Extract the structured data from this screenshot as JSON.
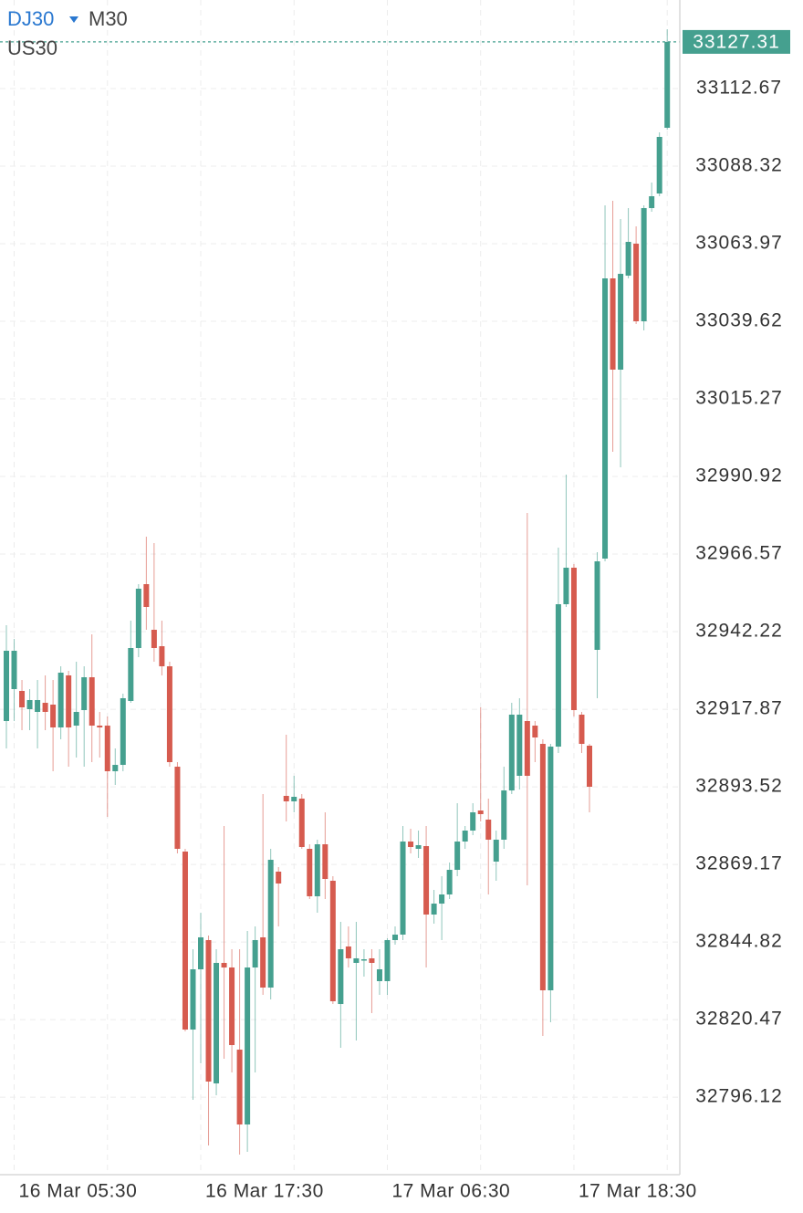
{
  "chart_data": {
    "type": "candlestick",
    "title": "DJ30",
    "interval": "M30",
    "subtitle": "US30",
    "last_price": 33127.31,
    "up_color": "#45a08f",
    "down_color": "#d65b4f",
    "grid": true,
    "ylim": [
      32771.8,
      33140.46
    ],
    "yticks": [
      33112.67,
      33088.32,
      33063.97,
      33039.62,
      33015.27,
      32990.92,
      32966.57,
      32942.22,
      32917.87,
      32893.52,
      32869.17,
      32844.82,
      32820.47,
      32796.12
    ],
    "categories": [
      null,
      "16 Mar 05:30",
      null,
      null,
      null,
      null,
      null,
      null,
      null,
      null,
      null,
      null,
      null,
      null,
      null,
      null,
      null,
      null,
      null,
      null,
      null,
      null,
      null,
      null,
      null,
      "16 Mar 17:30",
      null,
      null,
      null,
      null,
      null,
      null,
      null,
      null,
      null,
      null,
      null,
      null,
      null,
      null,
      null,
      null,
      null,
      null,
      null,
      null,
      null,
      null,
      null,
      "17 Mar 06:30",
      null,
      null,
      null,
      null,
      null,
      null,
      null,
      null,
      null,
      null,
      null,
      null,
      null,
      null,
      null,
      null,
      null,
      null,
      null,
      null,
      null,
      null,
      null,
      "17 Mar 18:30",
      null,
      null,
      null,
      null,
      null,
      null,
      null,
      null,
      null,
      null,
      null,
      null
    ],
    "open": [
      32914.16,
      32924.19,
      32923.62,
      32917.89,
      32917.03,
      32919.89,
      32919.32,
      32912.16,
      32928.49,
      32912.73,
      32917.6,
      32927.91,
      32912.73,
      32912.73,
      32898.41,
      32900.41,
      32920.47,
      32937.08,
      32957.13,
      32942.81,
      32937.65,
      32931.35,
      32899.84,
      32873.2,
      32817.34,
      32836.25,
      32845.42,
      32800.44,
      32838.26,
      32836.82,
      32811.04,
      32787.55,
      32836.82,
      32846.28,
      32830.52,
      32866.9,
      32890.68,
      32888.96,
      32889.82,
      32874.06,
      32859.17,
      32875.49,
      32864.04,
      32825.36,
      32843.41,
      32838.26,
      32839.11,
      32839.69,
      32832.53,
      32832.53,
      32845.42,
      32847.14,
      32876.35,
      32874.06,
      32874.92,
      32853.44,
      32856.87,
      32859.74,
      32867.47,
      32876.35,
      32879.79,
      32886.09,
      32883.23,
      32870.05,
      32876.93,
      32892.39,
      32896.98,
      32914.16,
      32912.73,
      32907.0,
      32829.66,
      32906.14,
      32950.83,
      32962.29,
      32916.17,
      32906.43,
      32936.51,
      32965.15,
      33053.09,
      33024.45,
      33053.95,
      33063.98,
      33039.63,
      33075.15,
      33079.73,
      33100.36
    ],
    "high": [
      32944.24,
      32939.94,
      32927.05,
      32924.19,
      32927.05,
      32928.49,
      32927.05,
      32931.35,
      32929.92,
      32932.78,
      32931.35,
      32941.38,
      32917.03,
      32915.6,
      32905.57,
      32922.76,
      32945.67,
      32957.13,
      32972.03,
      32970.02,
      32945.67,
      32932.78,
      32901.27,
      32874.06,
      32842.55,
      32854.01,
      32846.85,
      32842.55,
      32881.22,
      32842.55,
      32842.55,
      32848.28,
      32849.71,
      32891.25,
      32874.06,
      32868.33,
      32909.87,
      32896.98,
      32891.25,
      32875.49,
      32876.93,
      32885.52,
      32865.47,
      32851.15,
      32849.71,
      32851.15,
      32842.55,
      32842.55,
      32842.55,
      32845.99,
      32849.71,
      32881.22,
      32880.36,
      32879.79,
      32881.22,
      32861.17,
      32865.47,
      32869.76,
      32888.38,
      32881.22,
      32888.38,
      32918.46,
      32889.82,
      32879.79,
      32899.84,
      32919.89,
      32921.33,
      32979.48,
      32914.16,
      32908.44,
      32907.0,
      32968.59,
      32991.51,
      32963.43,
      32917.03,
      32907.0,
      32967.16,
      33076.01,
      33077.44,
      33071.71,
      33075.15,
      33069.42,
      33076.01,
      33083.17,
      33098.92,
      33131.29
    ],
    "low": [
      32905.57,
      32914.16,
      32911.3,
      32911.3,
      32905.57,
      32911.3,
      32898.41,
      32908.44,
      32899.84,
      32902.71,
      32899.84,
      32901.27,
      32902.71,
      32884.09,
      32894.11,
      32898.41,
      32919.89,
      32934.22,
      32942.81,
      32932.78,
      32928.49,
      32899.84,
      32872.63,
      32816.77,
      32795.29,
      32806.75,
      32780.97,
      32796.72,
      32808.18,
      32803.88,
      32778.1,
      32778.96,
      32803.88,
      32828.23,
      32826.8,
      32849.71,
      32882.65,
      32885.52,
      32874.06,
      32858.31,
      32854.01,
      32858.31,
      32825.36,
      32811.62,
      32836.82,
      32813.91,
      32833.96,
      32822.5,
      32828.23,
      32828.23,
      32843.98,
      32845.42,
      32872.63,
      32871.2,
      32836.82,
      32850.57,
      32845.42,
      32858.31,
      32865.47,
      32874.06,
      32878.36,
      32882.65,
      32859.74,
      32864.04,
      32874.06,
      32891.25,
      32892.68,
      32862.6,
      32901.27,
      32815.34,
      32819.64,
      32904.14,
      32949.97,
      32915.6,
      32904.14,
      32885.52,
      32921.33,
      32964.29,
      32998.67,
      32993.8,
      33053.09,
      33038.77,
      33036.77,
      33074.0,
      33078.87,
      33099.78
    ],
    "close": [
      32936.22,
      32936.22,
      32918.46,
      32920.75,
      32920.75,
      32917.03,
      32912.16,
      32929.35,
      32912.16,
      32917.03,
      32927.91,
      32912.73,
      32912.16,
      32898.41,
      32900.41,
      32921.33,
      32937.08,
      32955.7,
      32949.97,
      32937.08,
      32931.35,
      32901.27,
      32874.06,
      32817.34,
      32836.25,
      32846.28,
      32801.02,
      32838.26,
      32836.82,
      32812.47,
      32787.55,
      32836.82,
      32845.42,
      32830.52,
      32870.62,
      32863.18,
      32888.96,
      32890.39,
      32874.63,
      32859.17,
      32875.49,
      32864.61,
      32826.22,
      32842.55,
      32839.69,
      32839.69,
      32839.4,
      32838.26,
      32836.25,
      32845.42,
      32847.14,
      32876.35,
      32874.63,
      32875.21,
      32853.44,
      32856.87,
      32859.74,
      32867.47,
      32876.35,
      32879.79,
      32885.52,
      32884.95,
      32876.93,
      32876.93,
      32892.39,
      32916.17,
      32916.17,
      32896.98,
      32909.01,
      32829.66,
      32906.14,
      32950.83,
      32962.29,
      32917.6,
      32907.0,
      32893.54,
      32964.29,
      33053.09,
      33024.45,
      33054.52,
      33064.55,
      33039.63,
      33075.15,
      33078.87,
      33097.49,
      33127.31
    ]
  }
}
